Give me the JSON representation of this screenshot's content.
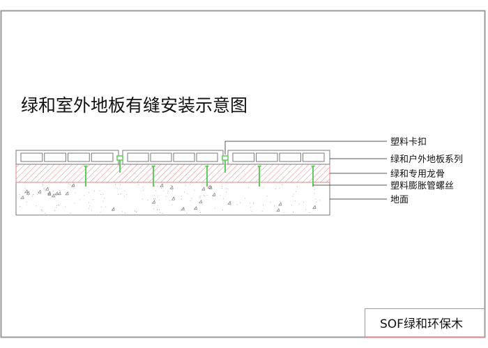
{
  "title": "绿和室外地板有缝安装示意图",
  "labels": {
    "clip": "塑料卡扣",
    "board": "绿和户外地板系列",
    "joist": "绿和专用龙骨",
    "screw": "塑料膨胀管螺丝",
    "ground": "地面"
  },
  "brand": "SOF绿和环保木",
  "colors": {
    "joist_hatch": "#e08080",
    "screw": "#5ccc5c",
    "frame": "#9a9a9a",
    "brand_border": "#d08a8a"
  }
}
